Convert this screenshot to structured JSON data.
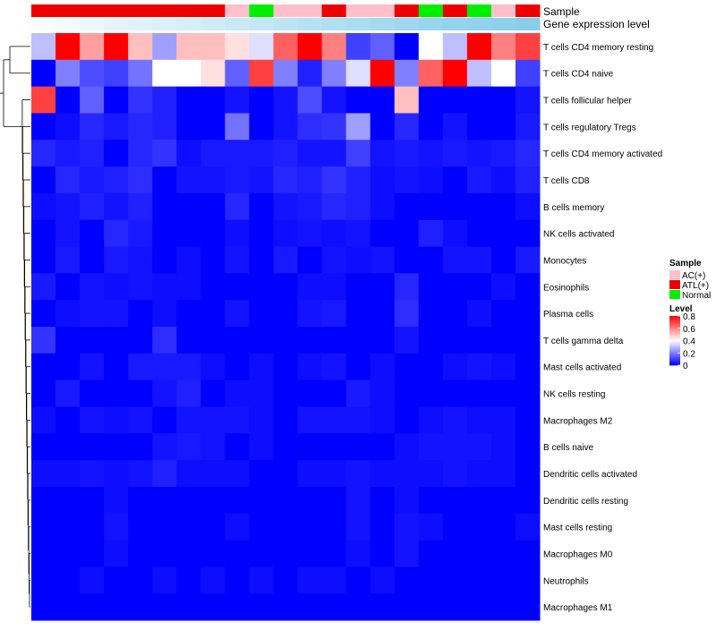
{
  "chart_data": {
    "type": "heatmap",
    "annotation_labels": {
      "sample": "Sample",
      "gene_expression": "Gene expression level"
    },
    "columns": [
      {
        "sample": "ATL(+)",
        "gene_expression": 0.05
      },
      {
        "sample": "ATL(+)",
        "gene_expression": 0.1
      },
      {
        "sample": "ATL(+)",
        "gene_expression": 0.15
      },
      {
        "sample": "ATL(+)",
        "gene_expression": 0.2
      },
      {
        "sample": "ATL(+)",
        "gene_expression": 0.25
      },
      {
        "sample": "ATL(+)",
        "gene_expression": 0.3
      },
      {
        "sample": "ATL(+)",
        "gene_expression": 0.35
      },
      {
        "sample": "ATL(+)",
        "gene_expression": 0.4
      },
      {
        "sample": "AC(+)",
        "gene_expression": 0.45
      },
      {
        "sample": "Normal",
        "gene_expression": 0.5
      },
      {
        "sample": "AC(+)",
        "gene_expression": 0.55
      },
      {
        "sample": "AC(+)",
        "gene_expression": 0.6
      },
      {
        "sample": "ATL(+)",
        "gene_expression": 0.65
      },
      {
        "sample": "AC(+)",
        "gene_expression": 0.7
      },
      {
        "sample": "AC(+)",
        "gene_expression": 0.75
      },
      {
        "sample": "ATL(+)",
        "gene_expression": 0.8
      },
      {
        "sample": "Normal",
        "gene_expression": 0.85
      },
      {
        "sample": "ATL(+)",
        "gene_expression": 0.88
      },
      {
        "sample": "Normal",
        "gene_expression": 0.92
      },
      {
        "sample": "AC(+)",
        "gene_expression": 0.96
      },
      {
        "sample": "ATL(+)",
        "gene_expression": 1.0
      }
    ],
    "rows": [
      {
        "label": "T cells CD4 memory resting",
        "values": [
          0.3,
          0.8,
          0.55,
          0.8,
          0.5,
          0.25,
          0.5,
          0.5,
          0.45,
          0.35,
          0.65,
          0.8,
          0.6,
          0.1,
          0.15,
          0.0,
          0.4,
          0.3,
          0.8,
          0.6,
          0.7
        ]
      },
      {
        "label": "T cells CD4 naive",
        "values": [
          0.0,
          0.2,
          0.12,
          0.1,
          0.18,
          0.4,
          0.4,
          0.45,
          0.15,
          0.7,
          0.2,
          0.05,
          0.2,
          0.35,
          0.8,
          0.2,
          0.65,
          0.8,
          0.3,
          0.4,
          0.1
        ]
      },
      {
        "label": "T cells follicular helper",
        "values": [
          0.7,
          0.0,
          0.15,
          0.0,
          0.08,
          0.05,
          0.0,
          0.0,
          0.03,
          0.0,
          0.03,
          0.12,
          0.03,
          0.0,
          0.0,
          0.5,
          0.0,
          0.0,
          0.0,
          0.0,
          0.03
        ]
      },
      {
        "label": "T cells regulatory  Tregs",
        "values": [
          0.0,
          0.02,
          0.06,
          0.04,
          0.06,
          0.05,
          0.0,
          0.0,
          0.18,
          0.0,
          0.03,
          0.07,
          0.08,
          0.25,
          0.0,
          0.06,
          0.0,
          0.03,
          0.0,
          0.0,
          0.04
        ]
      },
      {
        "label": "T cells CD4 memory activated",
        "values": [
          0.06,
          0.04,
          0.05,
          0.0,
          0.06,
          0.08,
          0.02,
          0.04,
          0.04,
          0.04,
          0.05,
          0.03,
          0.03,
          0.1,
          0.03,
          0.04,
          0.03,
          0.04,
          0.03,
          0.04,
          0.06
        ]
      },
      {
        "label": "T cells CD8",
        "values": [
          0.0,
          0.06,
          0.04,
          0.05,
          0.07,
          0.0,
          0.03,
          0.03,
          0.04,
          0.03,
          0.06,
          0.05,
          0.08,
          0.05,
          0.02,
          0.03,
          0.02,
          0.0,
          0.04,
          0.02,
          0.05
        ]
      },
      {
        "label": "B cells memory",
        "values": [
          0.02,
          0.03,
          0.05,
          0.03,
          0.05,
          0.0,
          0.0,
          0.0,
          0.06,
          0.0,
          0.03,
          0.04,
          0.06,
          0.05,
          0.02,
          0.0,
          0.0,
          0.0,
          0.0,
          0.0,
          0.02
        ]
      },
      {
        "label": "NK cells activated",
        "values": [
          0.0,
          0.03,
          0.0,
          0.06,
          0.04,
          0.0,
          0.0,
          0.0,
          0.02,
          0.0,
          0.02,
          0.03,
          0.02,
          0.03,
          0.0,
          0.0,
          0.05,
          0.02,
          0.0,
          0.0,
          0.0
        ]
      },
      {
        "label": "Monocytes",
        "values": [
          0.0,
          0.04,
          0.0,
          0.04,
          0.03,
          0.0,
          0.02,
          0.0,
          0.03,
          0.0,
          0.04,
          0.0,
          0.03,
          0.02,
          0.03,
          0.0,
          0.0,
          0.03,
          0.03,
          0.0,
          0.04
        ]
      },
      {
        "label": "Eosinophils",
        "values": [
          0.04,
          0.0,
          0.03,
          0.02,
          0.03,
          0.02,
          0.02,
          0.0,
          0.0,
          0.0,
          0.0,
          0.02,
          0.02,
          0.0,
          0.0,
          0.06,
          0.0,
          0.0,
          0.0,
          0.02,
          0.0
        ]
      },
      {
        "label": "Plasma cells",
        "values": [
          0.0,
          0.02,
          0.03,
          0.03,
          0.0,
          0.02,
          0.0,
          0.0,
          0.03,
          0.0,
          0.0,
          0.03,
          0.04,
          0.0,
          0.0,
          0.07,
          0.0,
          0.0,
          0.02,
          0.0,
          0.0
        ]
      },
      {
        "label": "T cells gamma delta",
        "values": [
          0.08,
          0.0,
          0.0,
          0.0,
          0.0,
          0.07,
          0.0,
          0.0,
          0.0,
          0.0,
          0.0,
          0.0,
          0.0,
          0.0,
          0.0,
          0.03,
          0.0,
          0.0,
          0.0,
          0.0,
          0.0
        ]
      },
      {
        "label": "Mast cells activated",
        "values": [
          0.0,
          0.0,
          0.03,
          0.0,
          0.04,
          0.04,
          0.04,
          0.02,
          0.0,
          0.02,
          0.0,
          0.02,
          0.03,
          0.0,
          0.02,
          0.0,
          0.0,
          0.02,
          0.03,
          0.02,
          0.0
        ]
      },
      {
        "label": "NK cells resting",
        "values": [
          0.0,
          0.04,
          0.0,
          0.0,
          0.0,
          0.03,
          0.05,
          0.0,
          0.02,
          0.02,
          0.0,
          0.0,
          0.0,
          0.04,
          0.02,
          0.0,
          0.0,
          0.0,
          0.0,
          0.0,
          0.0
        ]
      },
      {
        "label": "Macrophages M2",
        "values": [
          0.02,
          0.0,
          0.03,
          0.02,
          0.03,
          0.0,
          0.03,
          0.03,
          0.03,
          0.02,
          0.0,
          0.03,
          0.03,
          0.03,
          0.02,
          0.0,
          0.02,
          0.03,
          0.02,
          0.02,
          0.0
        ]
      },
      {
        "label": "B cells naive",
        "values": [
          0.0,
          0.0,
          0.0,
          0.0,
          0.0,
          0.03,
          0.04,
          0.03,
          0.0,
          0.02,
          0.0,
          0.0,
          0.0,
          0.0,
          0.0,
          0.02,
          0.03,
          0.03,
          0.03,
          0.02,
          0.0
        ]
      },
      {
        "label": "Dendritic cells activated",
        "values": [
          0.02,
          0.02,
          0.03,
          0.02,
          0.03,
          0.05,
          0.02,
          0.02,
          0.02,
          0.0,
          0.0,
          0.02,
          0.02,
          0.03,
          0.02,
          0.02,
          0.02,
          0.03,
          0.02,
          0.02,
          0.0
        ]
      },
      {
        "label": "Dendritic cells resting",
        "values": [
          0.0,
          0.0,
          0.0,
          0.02,
          0.0,
          0.0,
          0.0,
          0.0,
          0.0,
          0.0,
          0.0,
          0.0,
          0.0,
          0.03,
          0.0,
          0.02,
          0.0,
          0.0,
          0.0,
          0.0,
          0.0
        ]
      },
      {
        "label": "Mast cells resting",
        "values": [
          0.0,
          0.0,
          0.0,
          0.03,
          0.0,
          0.0,
          0.0,
          0.0,
          0.02,
          0.0,
          0.0,
          0.0,
          0.0,
          0.03,
          0.0,
          0.03,
          0.02,
          0.0,
          0.0,
          0.0,
          0.02
        ]
      },
      {
        "label": "Macrophages M0",
        "values": [
          0.0,
          0.0,
          0.0,
          0.02,
          0.0,
          0.0,
          0.0,
          0.0,
          0.0,
          0.0,
          0.0,
          0.0,
          0.0,
          0.02,
          0.0,
          0.03,
          0.0,
          0.0,
          0.0,
          0.0,
          0.0
        ]
      },
      {
        "label": "Neutrophils",
        "values": [
          0.0,
          0.0,
          0.02,
          0.0,
          0.0,
          0.02,
          0.0,
          0.02,
          0.0,
          0.02,
          0.0,
          0.02,
          0.02,
          0.0,
          0.02,
          0.0,
          0.0,
          0.0,
          0.0,
          0.0,
          0.0
        ]
      },
      {
        "label": "Macrophages M1",
        "values": [
          0.0,
          0.0,
          0.0,
          0.0,
          0.0,
          0.0,
          0.0,
          0.0,
          0.0,
          0.0,
          0.0,
          0.0,
          0.0,
          0.0,
          0.0,
          0.0,
          0.0,
          0.0,
          0.0,
          0.0,
          0.0
        ]
      }
    ],
    "color_scale": {
      "range": [
        0,
        0.8
      ],
      "stops": [
        {
          "value": 0,
          "color": "#0000ff"
        },
        {
          "value": 0.4,
          "color": "#ffffff"
        },
        {
          "value": 0.8,
          "color": "#ff0000"
        }
      ]
    },
    "sample_colors": {
      "AC(+)": "#ffc0cb",
      "ATL(+)": "#ee0000",
      "Normal": "#00ee00"
    },
    "gene_expression_colors": {
      "low": "#ffffff",
      "high": "#87ceeb"
    },
    "legend": {
      "sample_title": "Sample",
      "sample_entries": [
        "AC(+)",
        "ATL(+)",
        "Normal"
      ],
      "level_title": "Level",
      "level_ticks": [
        "0.8",
        "0.6",
        "0.4",
        "0.2",
        "0"
      ],
      "level_tick_values": [
        0.8,
        0.6,
        0.4,
        0.2,
        0
      ]
    },
    "dendrogram": "hierarchical clustering on rows (left side)"
  }
}
